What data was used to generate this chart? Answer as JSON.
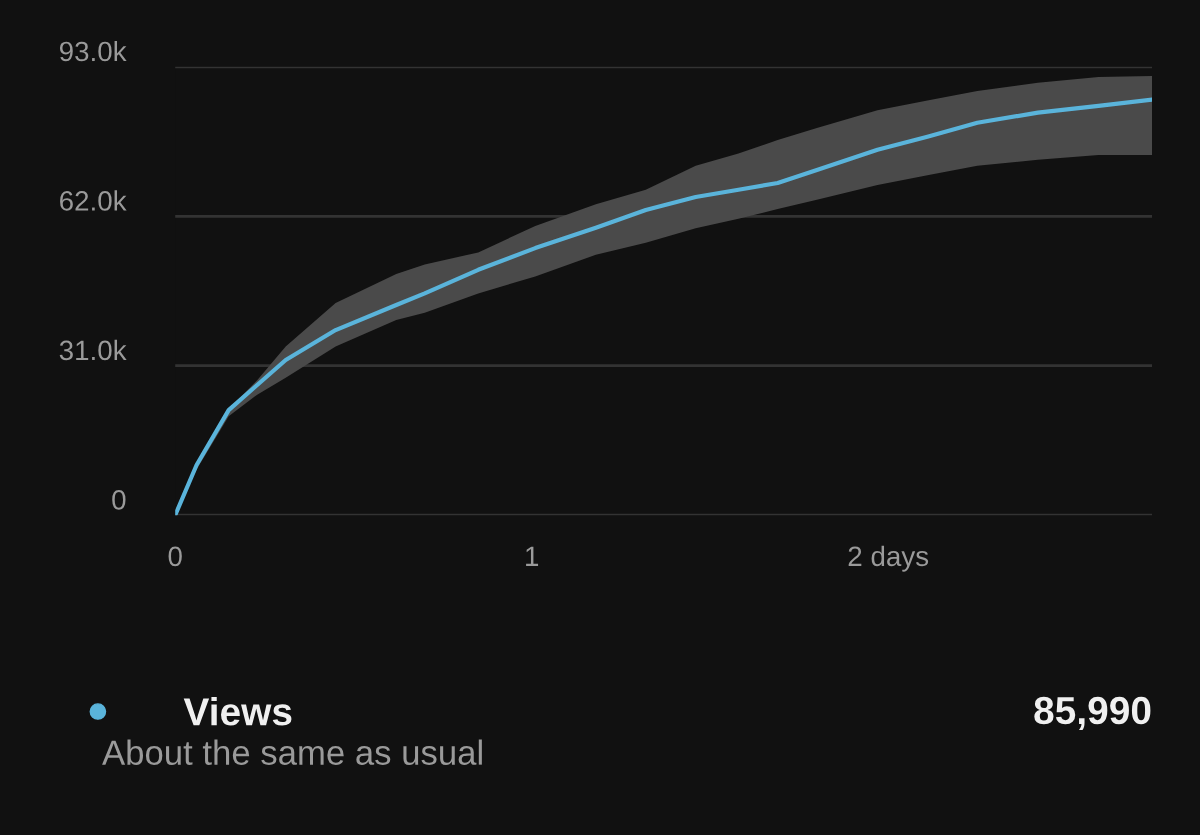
{
  "chart_data": {
    "type": "line",
    "x": [
      0,
      0.06,
      0.15,
      0.23,
      0.31,
      0.45,
      0.62,
      0.7,
      0.85,
      1.01,
      1.18,
      1.32,
      1.46,
      1.58,
      1.69,
      1.8,
      1.97,
      2.11,
      2.25,
      2.42,
      2.59,
      2.74
    ],
    "series": [
      {
        "name": "Views",
        "color": "#5ab4db",
        "values": [
          0,
          10.4,
          21.8,
          27,
          32.2,
          38.4,
          43.6,
          46,
          50.9,
          55.4,
          59.6,
          63.3,
          66,
          67.5,
          68.9,
          71.6,
          75.8,
          78.5,
          81.4,
          83.5,
          84.9,
          86.2
        ],
        "upper": [
          0,
          11,
          22,
          28,
          35,
          44,
          50,
          52,
          54.5,
          60,
          64.5,
          67.5,
          72.5,
          75,
          77.8,
          80.3,
          84,
          86,
          88,
          89.7,
          90.9,
          91.1
        ],
        "lower": [
          0,
          9.5,
          20.5,
          25,
          28.5,
          35,
          40.5,
          42,
          46,
          49.5,
          54,
          56.5,
          59.5,
          61.5,
          63.5,
          65.4,
          68.5,
          70.5,
          72.5,
          73.7,
          74.7,
          74.7
        ]
      }
    ],
    "xlim": [
      0,
      2.74
    ],
    "xticks": [
      0,
      1,
      {
        "value": 2,
        "label": "2 days"
      }
    ],
    "ylim": [
      0,
      93
    ],
    "yticks": [
      0,
      {
        "value": 31,
        "label": "31.0k"
      },
      {
        "value": 62,
        "label": "62.0k"
      },
      {
        "value": 93,
        "label": "93.0k"
      }
    ],
    "grid": "y",
    "legend": "bottom left",
    "marker": "none",
    "line_style": "solid",
    "annotations": [
      "85,990",
      "About the same as usual"
    ]
  }
}
